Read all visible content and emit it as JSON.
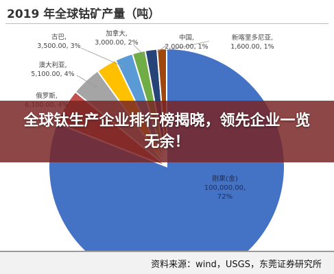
{
  "chart_data": {
    "type": "pie",
    "title": "2019 年全球钴矿产量（吨）",
    "slices": [
      {
        "name": "刚果(金)",
        "value": 100000,
        "value_label": "100,000.00",
        "percent_label": "72%",
        "color": "#4472c4"
      },
      {
        "name": "俄罗斯",
        "value": 6100,
        "value_label": "6,100.00",
        "percent_label": "4%",
        "color": "#c0504d"
      },
      {
        "name": "澳大利亚",
        "value": 5100,
        "value_label": "5,100.00",
        "percent_label": "4%",
        "color": "#a5a5a5"
      },
      {
        "name": "古巴",
        "value": 3500,
        "value_label": "3,500.00",
        "percent_label": "3%",
        "color": "#ffc000"
      },
      {
        "name": "加拿大",
        "value": 3000,
        "value_label": "3,000.00",
        "percent_label": "2%",
        "color": "#5b9bd5"
      },
      {
        "name": "",
        "value": 2200,
        "value_label": "",
        "percent_label": "",
        "color": "#70ad47"
      },
      {
        "name": "中国",
        "value": 2000,
        "value_label": "2,000.00",
        "percent_label": "1%",
        "color": "#264478"
      },
      {
        "name": "新喀里多尼亚",
        "value": 1600,
        "value_label": "1,600.00",
        "percent_label": "1%",
        "color": "#9e480e"
      }
    ]
  },
  "banner": {
    "text": "全球钛生产企业排行榜揭晓，领先企业一览无余！"
  },
  "source": {
    "text": "资料来源：wind，USGS，东莞证券研究所"
  }
}
